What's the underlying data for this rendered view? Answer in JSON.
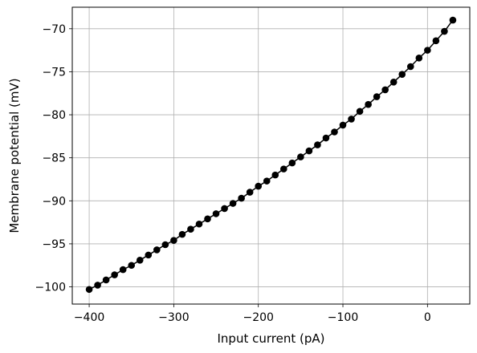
{
  "chart_data": {
    "type": "line",
    "title": "",
    "xlabel": "Input current (pA)",
    "ylabel": "Membrane potential (mV)",
    "xlim": [
      -420,
      50
    ],
    "ylim": [
      -102,
      -67.5
    ],
    "xticks": [
      -400,
      -300,
      -200,
      -100,
      0
    ],
    "yticks": [
      -100,
      -95,
      -90,
      -85,
      -80,
      -75,
      -70
    ],
    "xtick_labels": [
      "−400",
      "−300",
      "−200",
      "−100",
      "0"
    ],
    "ytick_labels": [
      "−100",
      "−95",
      "−90",
      "−85",
      "−80",
      "−75",
      "−70"
    ],
    "grid": true,
    "legend": "none",
    "series": [
      {
        "color": "#000000",
        "marker": "circle",
        "x": [
          -400,
          -390,
          -380,
          -370,
          -360,
          -350,
          -340,
          -330,
          -320,
          -310,
          -300,
          -290,
          -280,
          -270,
          -260,
          -250,
          -240,
          -230,
          -220,
          -210,
          -200,
          -190,
          -180,
          -170,
          -160,
          -150,
          -140,
          -130,
          -120,
          -110,
          -100,
          -90,
          -80,
          -70,
          -60,
          -50,
          -40,
          -30,
          -20,
          -10,
          0,
          10,
          20,
          30
        ],
        "y": [
          -100.3,
          -99.8,
          -99.2,
          -98.6,
          -98.0,
          -97.5,
          -96.9,
          -96.3,
          -95.7,
          -95.1,
          -94.6,
          -93.9,
          -93.3,
          -92.7,
          -92.1,
          -91.5,
          -90.9,
          -90.3,
          -89.7,
          -89.0,
          -88.3,
          -87.7,
          -87.0,
          -86.3,
          -85.6,
          -84.9,
          -84.2,
          -83.5,
          -82.7,
          -82.0,
          -81.2,
          -80.5,
          -79.6,
          -78.8,
          -77.9,
          -77.1,
          -76.2,
          -75.3,
          -74.4,
          -73.4,
          -72.5,
          -71.4,
          -70.3,
          -69.0
        ]
      }
    ]
  }
}
